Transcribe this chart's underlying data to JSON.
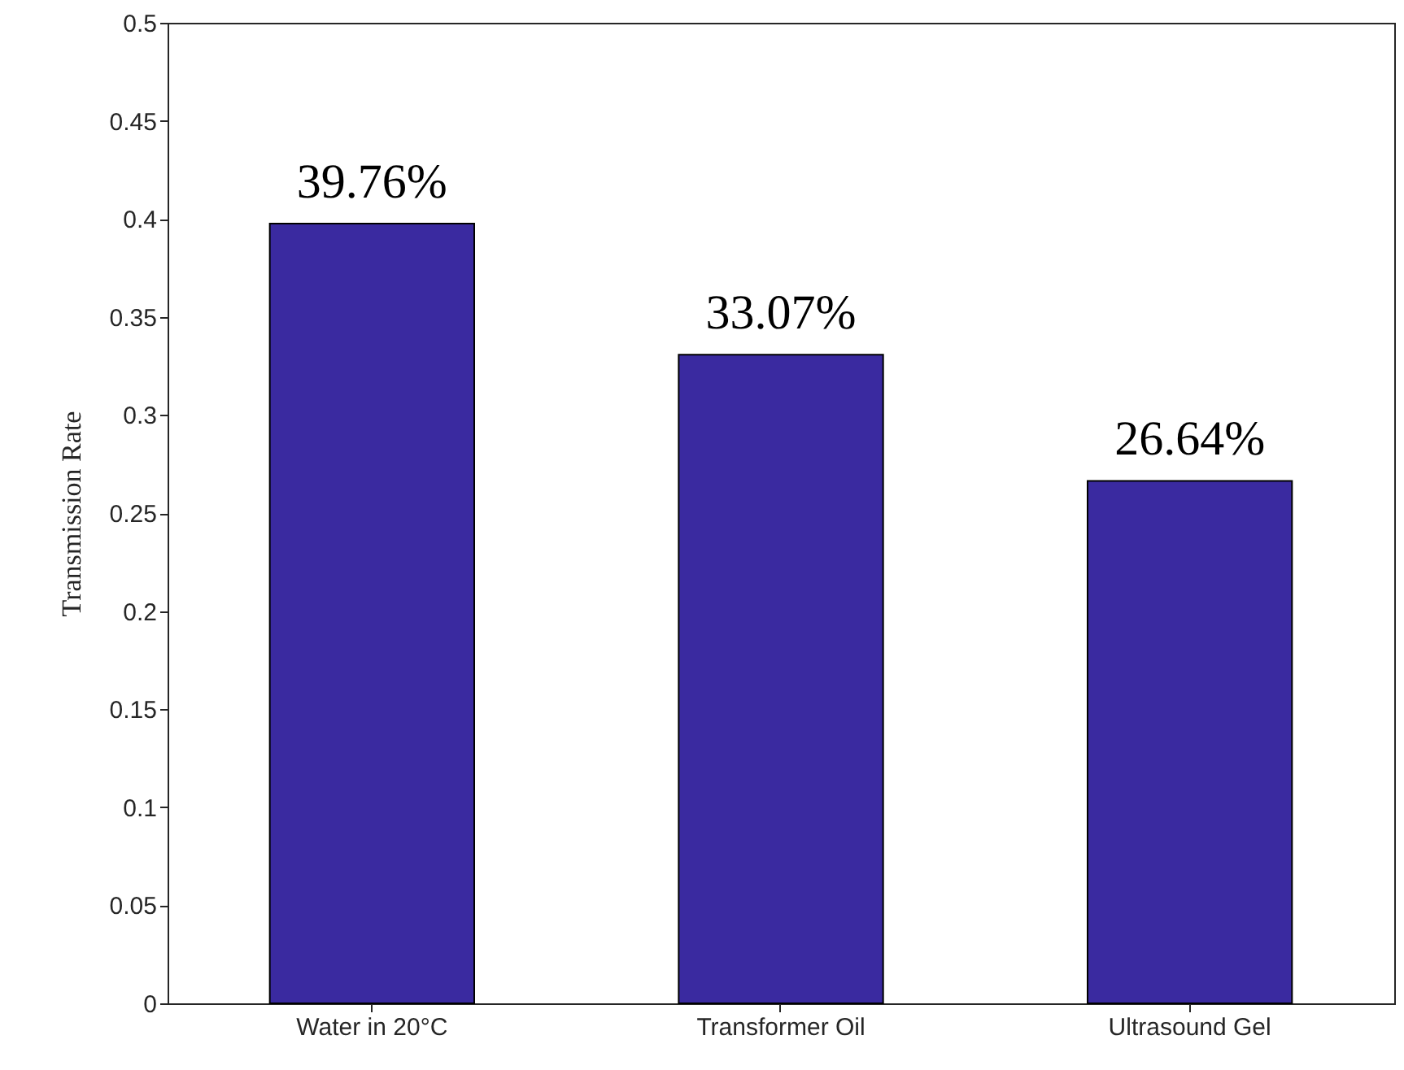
{
  "chart_data": {
    "type": "bar",
    "ylabel": "Transmission Rate",
    "categories": [
      "Water in 20°C",
      "Transformer Oil",
      "Ultrasound Gel"
    ],
    "values": [
      0.3976,
      0.3307,
      0.2664
    ],
    "color": "#3a2aa0",
    "value_labels": [
      "39.76%",
      "33.07%",
      "26.64%"
    ],
    "ylim": [
      0,
      0.5
    ],
    "yticks": [
      0,
      0.05,
      0.1,
      0.15,
      0.2,
      0.25,
      0.3,
      0.35,
      0.4,
      0.45,
      0.5
    ],
    "grid": false
  }
}
